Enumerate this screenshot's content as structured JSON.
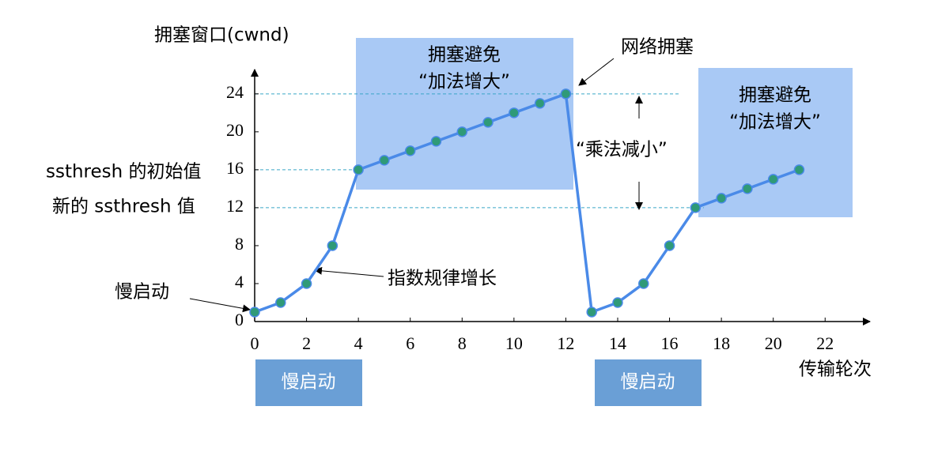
{
  "chart_data": {
    "type": "line",
    "y_label": "拥塞窗口(cwnd)",
    "x_label": "传输轮次",
    "x": [
      0,
      1,
      2,
      3,
      4,
      5,
      6,
      7,
      8,
      9,
      10,
      11,
      12,
      13,
      14,
      15,
      16,
      17,
      18,
      19,
      20,
      21
    ],
    "series": [
      {
        "color": "#4a8ae8",
        "marker_color": "#2f9a78",
        "values": [
          1,
          2,
          4,
          8,
          16,
          17,
          18,
          19,
          20,
          21,
          22,
          23,
          24,
          1,
          2,
          4,
          8,
          12,
          13,
          14,
          15,
          16
        ]
      }
    ],
    "xlim": [
      0,
      23.7
    ],
    "ylim": [
      0,
      26.4
    ],
    "xticks": [
      0,
      2,
      4,
      6,
      8,
      10,
      12,
      14,
      16,
      18,
      20,
      22
    ],
    "yticks": [
      0,
      4,
      8,
      12,
      16,
      20,
      24
    ],
    "annotations": {
      "avoid_1_title": "拥塞避免",
      "avoid_1_sub": "“加法增大”",
      "avoid_2_title": "拥塞避免",
      "avoid_2_sub": "“加法增大”",
      "congestion": "网络拥塞",
      "decrease": "“乘法减小”",
      "ssthresh_initial": "ssthresh 的初始值",
      "ssthresh_new": "新的 ssthresh 值",
      "exponential": "指数规律增长",
      "slow_start": "慢启动",
      "slow_start_box_1": "慢启动",
      "slow_start_box_2": "慢启动"
    }
  }
}
